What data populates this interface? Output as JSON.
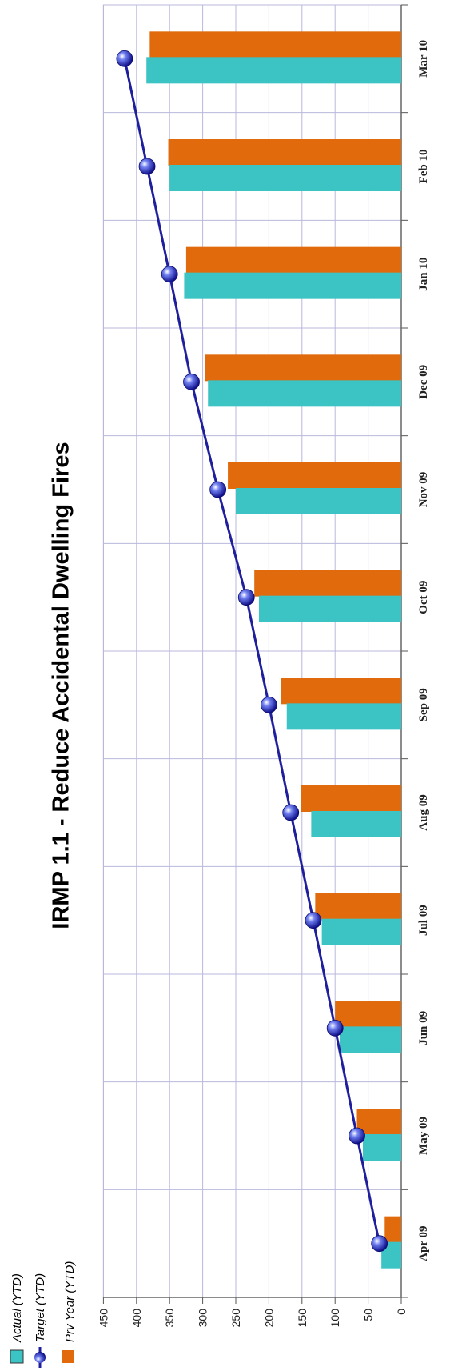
{
  "chart_data": {
    "type": "bar",
    "title": "IRMP 1.1 - Reduce Accidental Dwelling Fires",
    "categories": [
      "Apr 09",
      "May 09",
      "Jun 09",
      "Jul 09",
      "Aug 09",
      "Sep 09",
      "Oct 09",
      "Nov 09",
      "Dec 09",
      "Jan 10",
      "Feb 10",
      "Mar 10"
    ],
    "series": [
      {
        "name": "Actual (YTD)",
        "kind": "bar",
        "color": "#3cc3c3",
        "values": [
          30,
          58,
          93,
          120,
          136,
          173,
          215,
          250,
          292,
          328,
          350,
          385
        ]
      },
      {
        "name": "Target (YTD)",
        "kind": "line",
        "color": "#1f1f9e",
        "values": [
          33,
          67,
          100,
          133,
          167,
          200,
          234,
          277,
          317,
          350,
          384,
          418
        ]
      },
      {
        "name": "Prv Year (YTD)",
        "kind": "bar",
        "color": "#e06a0c",
        "values": [
          25,
          67,
          100,
          130,
          152,
          182,
          222,
          262,
          297,
          325,
          352,
          380
        ]
      }
    ],
    "yticks": [
      0,
      50,
      100,
      150,
      200,
      250,
      300,
      350,
      400,
      450
    ],
    "ylim": [
      0,
      450
    ],
    "grid": true,
    "legend_position": "top-left",
    "orientation": "rotated"
  }
}
